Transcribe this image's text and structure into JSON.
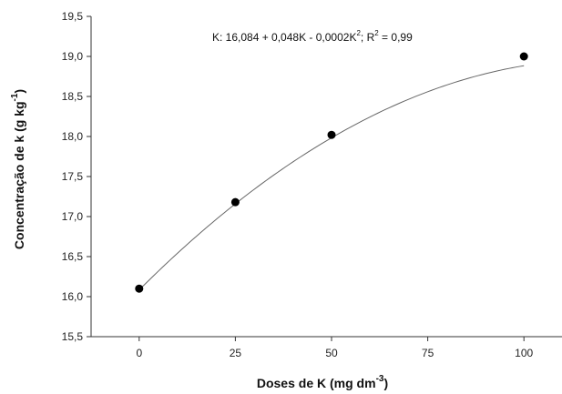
{
  "chart_data": {
    "type": "scatter",
    "title": "",
    "xlabel": "Doses de K (mg dm",
    "xlabel_sup": "-3",
    "xlabel_end": ")",
    "ylabel": "Concentração de k (g kg",
    "ylabel_sup": "-1",
    "ylabel_end": ")",
    "x_ticks": [
      "0",
      "25",
      "50",
      "75",
      "100"
    ],
    "y_ticks": [
      "15,5",
      "16,0",
      "16,5",
      "17,0",
      "17,5",
      "18,0",
      "18,5",
      "19,0",
      "19,5"
    ],
    "xlim": [
      -12.5,
      112.5
    ],
    "ylim": [
      15.5,
      19.5
    ],
    "grid": false,
    "points": [
      {
        "x": 0,
        "y": 16.1
      },
      {
        "x": 25,
        "y": 17.18
      },
      {
        "x": 50,
        "y": 18.02
      },
      {
        "x": 100,
        "y": 19.0
      }
    ],
    "fit": {
      "intercept": 16.084,
      "b1": 0.048,
      "b2": -0.0002
    },
    "annotation": {
      "part1": "K: 16,084 + 0,048K - 0,0002K",
      "sup1": "2",
      "part2": "; R",
      "sup2": "2",
      "part3": " = 0,99"
    }
  }
}
